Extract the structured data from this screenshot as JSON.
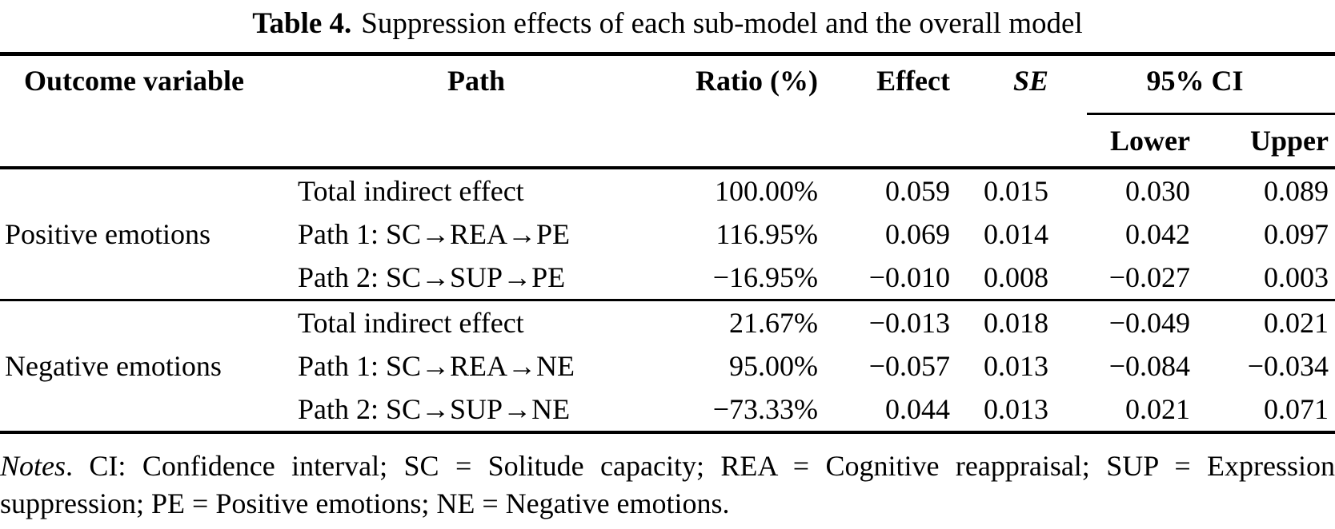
{
  "title": {
    "label": "Table 4.",
    "text": "Suppression effects of each sub-model and the overall model"
  },
  "table": {
    "headers": {
      "outcome": "Outcome variable",
      "path": "Path",
      "ratio": "Ratio (%)",
      "effect": "Effect",
      "se": "SE",
      "ci": "95% CI",
      "lower": "Lower",
      "upper": "Upper"
    },
    "groups": [
      {
        "outcome": "Positive emotions",
        "rows": [
          {
            "path": "Total indirect effect",
            "ratio": "100.00%",
            "effect": "0.059",
            "se": "0.015",
            "lower": "0.030",
            "upper": "0.089"
          },
          {
            "path": "Path 1: SC→REA→PE",
            "ratio": "116.95%",
            "effect": "0.069",
            "se": "0.014",
            "lower": "0.042",
            "upper": "0.097"
          },
          {
            "path": "Path 2: SC→SUP→PE",
            "ratio": "−16.95%",
            "effect": "−0.010",
            "se": "0.008",
            "lower": "−0.027",
            "upper": "0.003"
          }
        ]
      },
      {
        "outcome": "Negative emotions",
        "rows": [
          {
            "path": "Total indirect effect",
            "ratio": "21.67%",
            "effect": "−0.013",
            "se": "0.018",
            "lower": "−0.049",
            "upper": "0.021"
          },
          {
            "path": "Path 1: SC→REA→NE",
            "ratio": "95.00%",
            "effect": "−0.057",
            "se": "0.013",
            "lower": "−0.084",
            "upper": "−0.034"
          },
          {
            "path": "Path 2: SC→SUP→NE",
            "ratio": "−73.33%",
            "effect": "0.044",
            "se": "0.013",
            "lower": "0.021",
            "upper": "0.071"
          }
        ]
      }
    ]
  },
  "notes": {
    "label": "Notes",
    "text": ". CI: Confidence interval; SC = Solitude capacity; REA = Cognitive reappraisal; SUP = Expression suppression; PE = Positive emotions; NE = Negative emotions."
  }
}
